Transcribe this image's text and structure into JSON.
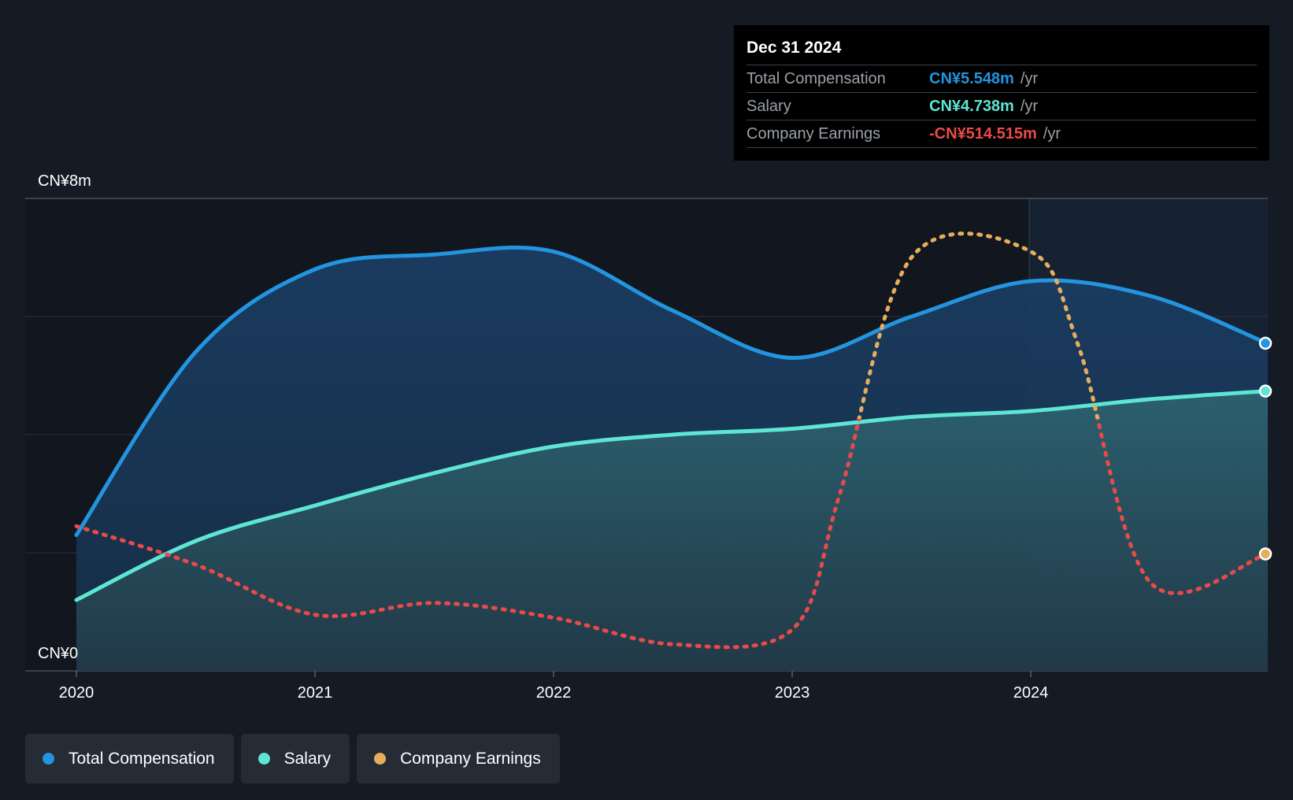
{
  "chart_data": {
    "type": "area",
    "x": [
      "2020",
      "2020.5",
      "2021",
      "2021.5",
      "2022",
      "2022.5",
      "2023",
      "2023.5",
      "2024",
      "2024.5",
      "Dec 2024"
    ],
    "xticks": [
      "2020",
      "2021",
      "2022",
      "2023",
      "2024"
    ],
    "ytick_labels": [
      "CN¥8m",
      "CN¥0"
    ],
    "ylim": [
      0,
      8
    ],
    "y_unit": "CN¥m",
    "grid": true,
    "legend_position": "bottom-left",
    "series": [
      {
        "name": "Total Compensation",
        "color": "#2394df",
        "style": "solid-area",
        "points": [
          [
            2020.0,
            2.3
          ],
          [
            2020.5,
            5.4
          ],
          [
            2021.0,
            6.8
          ],
          [
            2021.5,
            7.05
          ],
          [
            2022.0,
            7.1
          ],
          [
            2022.5,
            6.1
          ],
          [
            2023.0,
            5.3
          ],
          [
            2023.5,
            6.0
          ],
          [
            2024.0,
            6.6
          ],
          [
            2024.5,
            6.35
          ],
          [
            2024.99,
            5.548
          ]
        ]
      },
      {
        "name": "Salary",
        "color": "#5ee5d3",
        "style": "solid-area",
        "points": [
          [
            2020.0,
            1.2
          ],
          [
            2020.5,
            2.2
          ],
          [
            2021.0,
            2.8
          ],
          [
            2021.5,
            3.35
          ],
          [
            2022.0,
            3.8
          ],
          [
            2022.5,
            4.0
          ],
          [
            2023.0,
            4.1
          ],
          [
            2023.5,
            4.3
          ],
          [
            2024.0,
            4.4
          ],
          [
            2024.5,
            4.6
          ],
          [
            2024.99,
            4.738
          ]
        ]
      },
      {
        "name": "Company Earnings",
        "color": "#e8ad5c",
        "negative_color": "#e84a4a",
        "style": "dotted",
        "points": [
          [
            2020.0,
            2.45
          ],
          [
            2020.5,
            1.8
          ],
          [
            2021.0,
            0.95
          ],
          [
            2021.5,
            1.15
          ],
          [
            2022.0,
            0.9
          ],
          [
            2022.5,
            0.45
          ],
          [
            2023.0,
            0.7
          ],
          [
            2023.2,
            3.0
          ],
          [
            2023.5,
            7.0
          ],
          [
            2024.0,
            7.1
          ],
          [
            2024.2,
            5.5
          ],
          [
            2024.5,
            1.5
          ],
          [
            2024.99,
            1.98
          ]
        ],
        "negative_from": [
          [
            2020.0,
            2.3
          ],
          [
            2023.15,
            2.4
          ],
          [
            2024.35,
            2.4
          ]
        ]
      }
    ],
    "tooltip": {
      "date": "Dec 31 2024",
      "rows": [
        {
          "label": "Total Compensation",
          "value": "CN¥5.548m",
          "unit": "/yr",
          "color": "#2394df"
        },
        {
          "label": "Salary",
          "value": "CN¥4.738m",
          "unit": "/yr",
          "color": "#5ee5d3"
        },
        {
          "label": "Company Earnings",
          "value": "-CN¥514.515m",
          "unit": "/yr",
          "color": "#e84a4a"
        }
      ]
    }
  }
}
